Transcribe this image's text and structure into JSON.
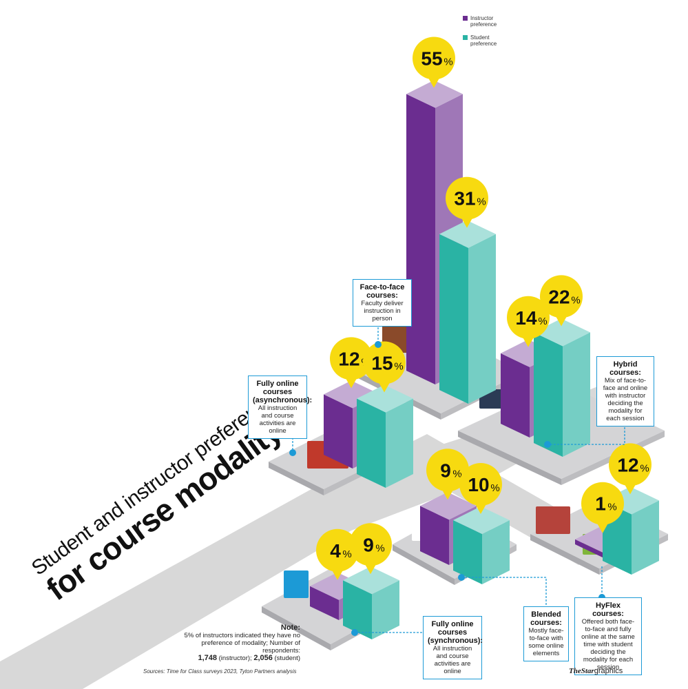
{
  "title": {
    "line1": "Student and instructor preference",
    "line2": "for course modality"
  },
  "legend": {
    "instructor": "Instructor preference",
    "student": "Student preference"
  },
  "colors": {
    "instructor": "#6b2d90",
    "student": "#2ab3a4",
    "floor": "#d4d4d6",
    "road": "#d8d8d8",
    "bubble": "#f7da10",
    "callout_border": "#1c9ad6"
  },
  "callouts": {
    "face_to_face": {
      "title": "Face-to-face courses:",
      "text": "Faculty deliver instruction in person"
    },
    "hybrid": {
      "title": "Hybrid courses:",
      "text": "Mix of face-to-face and online with instructor deciding the modality for each session"
    },
    "async": {
      "title": "Fully online courses (asynchronous):",
      "text": "All instruction and course activities are online"
    },
    "sync": {
      "title": "Fully online courses (synchronous):",
      "text": "All instruction and course activities are online"
    },
    "blended": {
      "title": "Blended courses:",
      "text": "Mostly face-to-face with some online elements"
    },
    "hyflex": {
      "title": "HyFlex courses:",
      "text": "Offered both face-to-face and fully online at the same time with student deciding the modality for each session"
    }
  },
  "note": {
    "label": "Note:",
    "text": "5% of instructors indicated they have no preference of modality; Number of respondents:",
    "instructor_n": "1,748",
    "instructor_label": "(instructor);",
    "student_n": "2,056",
    "student_label": "(student)"
  },
  "sources": "Sources: Time for Class surveys 2023, Tyton Partners analysis",
  "brand": {
    "the": "The",
    "star": "Star",
    "graphics": "graphics"
  },
  "chart_data": {
    "type": "bar",
    "title": "Student and instructor preference for course modality",
    "categories": [
      "Face-to-face courses",
      "Hybrid courses",
      "Fully online courses (asynchronous)",
      "Blended courses",
      "HyFlex courses",
      "Fully online courses (synchronous)"
    ],
    "series": [
      {
        "name": "Instructor preference",
        "values": [
          55,
          14,
          12,
          9,
          1,
          4
        ]
      },
      {
        "name": "Student preference",
        "values": [
          31,
          22,
          15,
          10,
          12,
          9
        ]
      }
    ],
    "unit": "%",
    "ylim": [
      0,
      55
    ]
  }
}
